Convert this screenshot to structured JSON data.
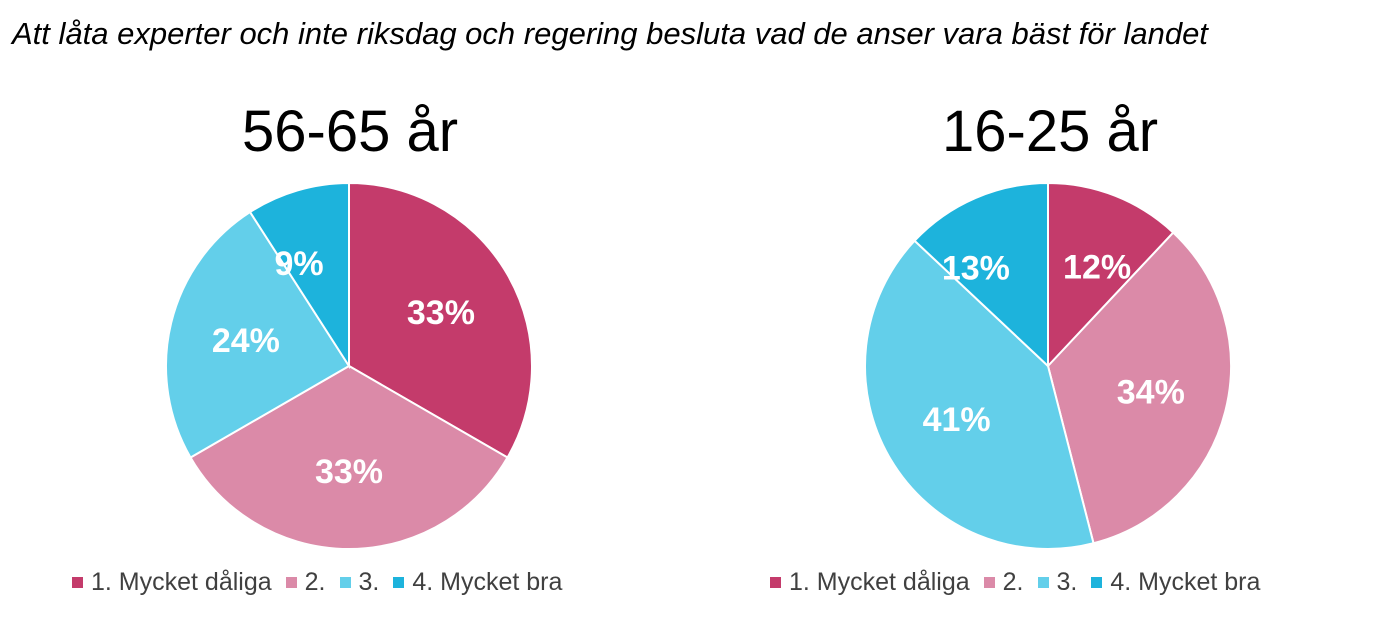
{
  "page": {
    "title": "Att låta experter och inte riksdag och regering besluta vad de anser vara bäst för landet"
  },
  "colors": {
    "Mycket dåliga": "#c43b6b",
    "2": "#db8aa8",
    "3": "#63cfea",
    "Mycket bra": "#1db3dc",
    "label_text": "#ffffff",
    "slice_border": "#ffffff"
  },
  "legend": {
    "items": [
      "1. Mycket dåliga",
      "2.",
      "3.",
      "4. Mycket bra"
    ]
  },
  "chart_data": [
    {
      "type": "pie",
      "title": "56-65 år",
      "categories": [
        "1. Mycket dåliga",
        "2.",
        "3.",
        "4. Mycket bra"
      ],
      "values": [
        33,
        33,
        24,
        9
      ],
      "labels": [
        "33%",
        "33%",
        "24%",
        "9%"
      ],
      "legend_position": "bottom"
    },
    {
      "type": "pie",
      "title": "16-25 år",
      "categories": [
        "1. Mycket dåliga",
        "2.",
        "3.",
        "4. Mycket bra"
      ],
      "values": [
        12,
        34,
        41,
        13
      ],
      "labels": [
        "12%",
        "34%",
        "41%",
        "13%"
      ],
      "legend_position": "bottom"
    }
  ]
}
